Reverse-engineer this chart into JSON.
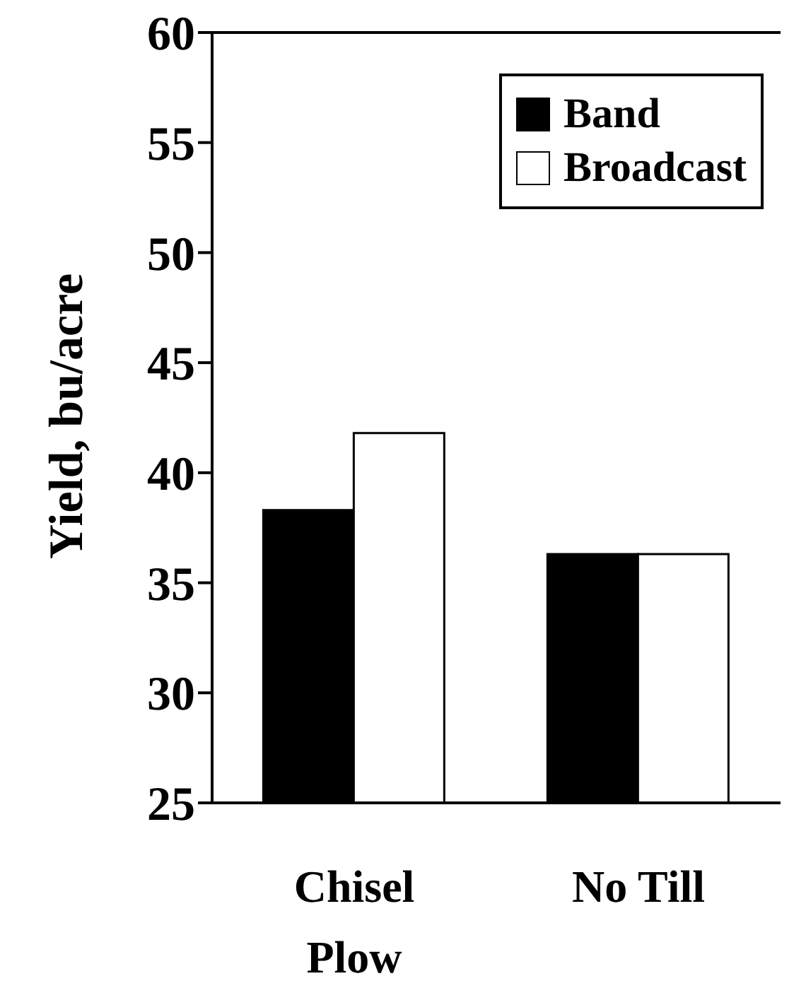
{
  "chart_data": {
    "type": "bar",
    "ylabel": "Yield, bu/acre",
    "categories": [
      "Chisel Plow",
      "No Till"
    ],
    "series": [
      {
        "name": "Band",
        "color": "#000000",
        "values": [
          38.3,
          36.3
        ]
      },
      {
        "name": "Broadcast",
        "color": "#ffffff",
        "values": [
          41.8,
          36.3
        ]
      }
    ],
    "ylim": [
      25,
      60
    ],
    "yticks": [
      25,
      30,
      35,
      40,
      45,
      50,
      55,
      60
    ],
    "grid": false,
    "legend": "top right"
  }
}
